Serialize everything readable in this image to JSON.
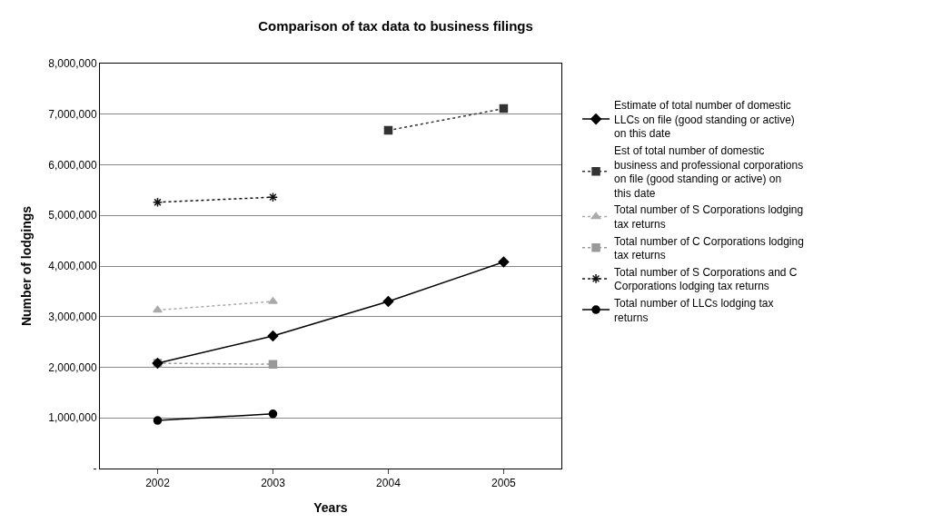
{
  "chart_data": {
    "type": "line",
    "title": "Comparison of tax data to business filings",
    "xlabel": "Years",
    "ylabel": "Number of lodgings",
    "categories": [
      "2002",
      "2003",
      "2004",
      "2005"
    ],
    "series": [
      {
        "name": "Estimate of total number of domestic LLCs on file (good standing or active) on this date",
        "color": "#000000",
        "marker": "diamond",
        "line_style": "solid",
        "values": [
          2080000,
          2620000,
          3300000,
          4080000
        ]
      },
      {
        "name": "Est of total number of domestic business and professional corporations on file (good standing or active) on this date",
        "color": "#333333",
        "marker": "square",
        "line_style": "dotted",
        "values": [
          null,
          null,
          6680000,
          7110000
        ]
      },
      {
        "name": "Total number of S Corporations lodging tax returns",
        "color": "#aaaaaa",
        "marker": "triangle",
        "line_style": "dotted",
        "values": [
          3130000,
          3300000,
          null,
          null
        ]
      },
      {
        "name": "Total number of C Corporations lodging tax returns",
        "color": "#999999",
        "marker": "square",
        "line_style": "dotted",
        "values": [
          2080000,
          2060000,
          null,
          null
        ]
      },
      {
        "name": "Total number of S Corporations and C Corporations lodging tax returns",
        "color": "#111111",
        "marker": "cross",
        "line_style": "dotted",
        "values": [
          5260000,
          5360000,
          null,
          null
        ]
      },
      {
        "name": "Total number of LLCs lodging tax returns",
        "color": "#000000",
        "marker": "circle",
        "line_style": "solid",
        "values": [
          950000,
          1080000,
          null,
          null
        ]
      }
    ],
    "ylim": [
      0,
      8000000
    ],
    "yticks": [
      {
        "value": 0,
        "label": "-"
      },
      {
        "value": 1000000,
        "label": "1,000,000"
      },
      {
        "value": 2000000,
        "label": "2,000,000"
      },
      {
        "value": 3000000,
        "label": "3,000,000"
      },
      {
        "value": 4000000,
        "label": "4,000,000"
      },
      {
        "value": 5000000,
        "label": "5,000,000"
      },
      {
        "value": 6000000,
        "label": "6,000,000"
      },
      {
        "value": 7000000,
        "label": "7,000,000"
      },
      {
        "value": 8000000,
        "label": "8,000,000"
      }
    ],
    "grid": "y",
    "legend": "right"
  }
}
